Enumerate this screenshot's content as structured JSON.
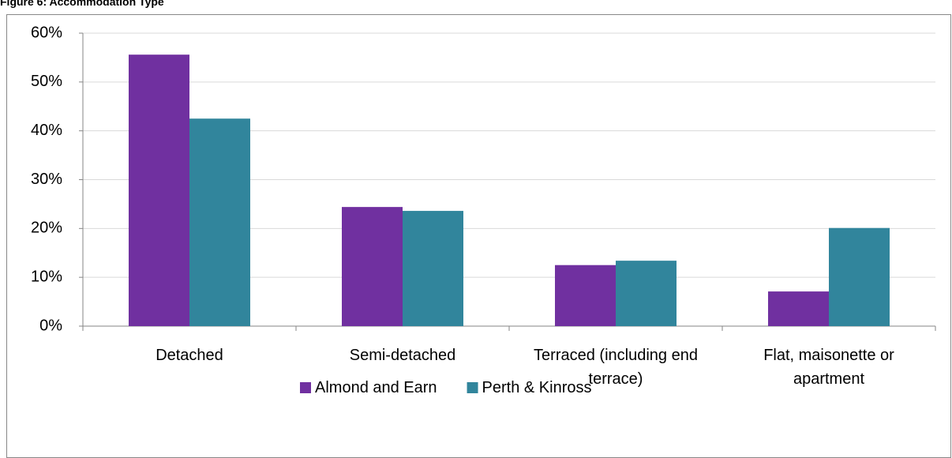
{
  "chart_data": {
    "type": "bar",
    "title": "Figure 6: Accommodation Type",
    "categories": [
      "Detached",
      "Semi-detached",
      "Terraced (including end terrace)",
      "Flat, maisonette or apartment"
    ],
    "series": [
      {
        "name": "Almond and Earn",
        "color": "#7030a0",
        "values": [
          55.6,
          24.4,
          12.5,
          7.1
        ]
      },
      {
        "name": "Perth & Kinross",
        "color": "#31859c",
        "values": [
          42.5,
          23.6,
          13.4,
          20.1
        ]
      }
    ],
    "ylim": [
      0,
      60
    ],
    "yticks": [
      {
        "value": 0,
        "label": "0%"
      },
      {
        "value": 10,
        "label": "10%"
      },
      {
        "value": 20,
        "label": "20%"
      },
      {
        "value": 30,
        "label": "30%"
      },
      {
        "value": 40,
        "label": "40%"
      },
      {
        "value": 50,
        "label": "50%"
      },
      {
        "value": 60,
        "label": "60%"
      }
    ],
    "grid": true,
    "legend": "bottom"
  }
}
